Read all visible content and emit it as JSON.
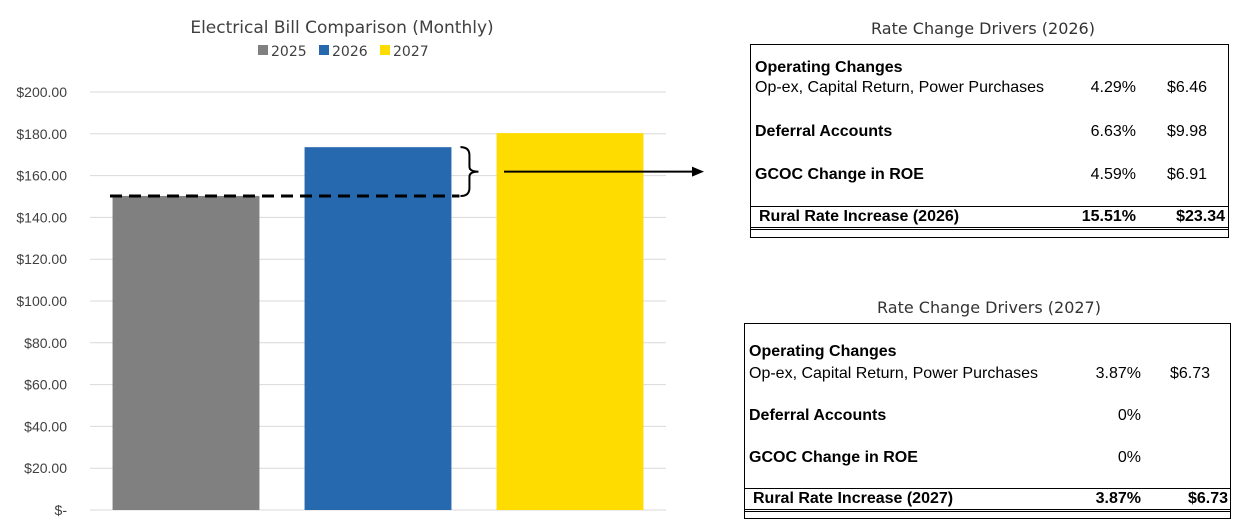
{
  "chart_data": {
    "type": "bar",
    "title": "Electrical  Bill  Comparison  (Monthly)",
    "categories": [
      "2025",
      "2026",
      "2027"
    ],
    "values": [
      150.26,
      173.6,
      180.33
    ],
    "colors": [
      "#808080",
      "#2769AE",
      "#FFDC00"
    ],
    "legend": [
      {
        "label": "2025",
        "color": "#808080"
      },
      {
        "label": "2026",
        "color": "#2769AE"
      },
      {
        "label": "2027",
        "color": "#FFDC00"
      }
    ],
    "legend_position": "top",
    "ylim": [
      0,
      200
    ],
    "yticks": [
      0,
      20,
      40,
      60,
      80,
      100,
      120,
      140,
      160,
      180,
      200
    ],
    "ytick_labels": [
      "$-",
      "$20.00",
      "$40.00",
      "$60.00",
      "$80.00",
      "$100.00",
      "$120.00",
      "$140.00",
      "$160.00",
      "$180.00",
      "$200.00"
    ],
    "grid": true,
    "annotations": [
      {
        "type": "dashed-line",
        "value": 150.26
      },
      {
        "type": "bracket",
        "from": 150.26,
        "to": 173.6
      },
      {
        "type": "arrow",
        "direction": "right"
      }
    ]
  },
  "table_2026": {
    "title": "Rate Change Drivers (2026)",
    "operating_label": "Operating Changes",
    "operating_sub": "Op-ex, Capital Return, Power Purchases",
    "operating_pct": "4.29%",
    "operating_amt": "$6.46",
    "deferral_label": "Deferral Accounts",
    "deferral_pct": "6.63%",
    "deferral_amt": "$9.98",
    "gcoc_label": "GCOC Change in ROE",
    "gcoc_pct": "4.59%",
    "gcoc_amt": "$6.91",
    "total_label": "Rural Rate Increase (2026)",
    "total_pct": "15.51%",
    "total_amt": "$23.34"
  },
  "table_2027": {
    "title": "Rate Change Drivers (2027)",
    "operating_label": "Operating Changes",
    "operating_sub": "Op-ex, Capital Return, Power Purchases",
    "operating_pct": "3.87%",
    "operating_amt": "$6.73",
    "deferral_label": "Deferral Accounts",
    "deferral_pct": "0%",
    "gcoc_label": "GCOC Change in ROE",
    "gcoc_pct": "0%",
    "total_label": "Rural Rate Increase (2027)",
    "total_pct": "3.87%",
    "total_amt": "$6.73"
  }
}
